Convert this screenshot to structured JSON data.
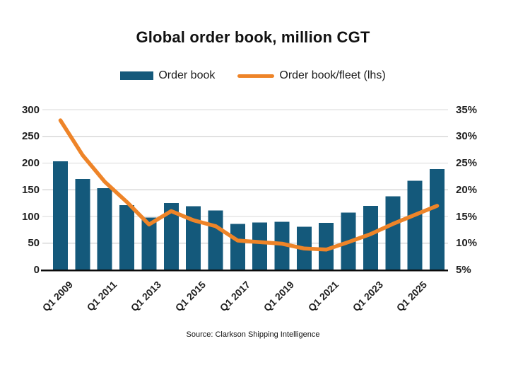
{
  "title": "Global order book, million CGT",
  "legend": {
    "items": [
      {
        "label": "Order book",
        "swatch": "bar",
        "color": "#14597B"
      },
      {
        "label": "Order book/fleet (lhs)",
        "swatch": "line",
        "color": "#EE8428"
      }
    ]
  },
  "footer": {
    "source": "Source: Clarkson Shipping Intelligence"
  },
  "colors": {
    "bar": "#14597B",
    "line": "#EE8428",
    "grid": "#d9d9d9",
    "axis": "#0b0b0b",
    "text": "#1a1a1a",
    "background": "#ffffff"
  },
  "chart_data": {
    "type": "bar+line",
    "title": "Global order book, million CGT",
    "categories": [
      "Q1 2009",
      "Q1 2010",
      "Q1 2011",
      "Q1 2012",
      "Q1 2013",
      "Q1 2014",
      "Q1 2015",
      "Q1 2016",
      "Q1 2017",
      "Q1 2018",
      "Q1 2019",
      "Q1 2020",
      "Q1 2021",
      "Q1 2022",
      "Q1 2023",
      "Q1 2024",
      "Q1 2025",
      "Q1 2026"
    ],
    "x_tick_labels": [
      "Q1 2009",
      "Q1 2011",
      "Q1 2013",
      "Q1 2015",
      "Q1 2017",
      "Q1 2019",
      "Q1 2021",
      "Q1 2023",
      "Q1 2025"
    ],
    "x_tick_bar_indices": [
      0,
      2,
      4,
      6,
      8,
      10,
      12,
      14,
      16
    ],
    "series": [
      {
        "name": "Order book",
        "type": "bar",
        "yaxis": "left",
        "unit": "million CGT",
        "values": [
          203,
          170,
          153,
          121,
          98,
          125,
          119,
          111,
          86,
          89,
          90,
          81,
          88,
          107,
          120,
          138,
          167,
          189
        ]
      },
      {
        "name": "Order book/fleet (lhs)",
        "type": "line",
        "yaxis": "right",
        "unit": "%",
        "values": [
          33.0,
          26.5,
          21.5,
          17.7,
          13.5,
          16.0,
          14.3,
          13.2,
          10.5,
          10.2,
          9.9,
          9.0,
          8.8,
          10.2,
          11.7,
          13.6,
          15.3,
          17.0
        ]
      }
    ],
    "left_axis": {
      "min": 0,
      "max": 300,
      "step": 50,
      "tick_labels": [
        "300",
        "250",
        "200",
        "150",
        "100",
        "50",
        "0"
      ]
    },
    "right_axis": {
      "min": 5,
      "max": 35,
      "step": 5,
      "tick_labels": [
        "35%",
        "30%",
        "25%",
        "20%",
        "15%",
        "10%",
        "5%"
      ]
    },
    "grid": "horizontal",
    "legend_position": "top"
  }
}
